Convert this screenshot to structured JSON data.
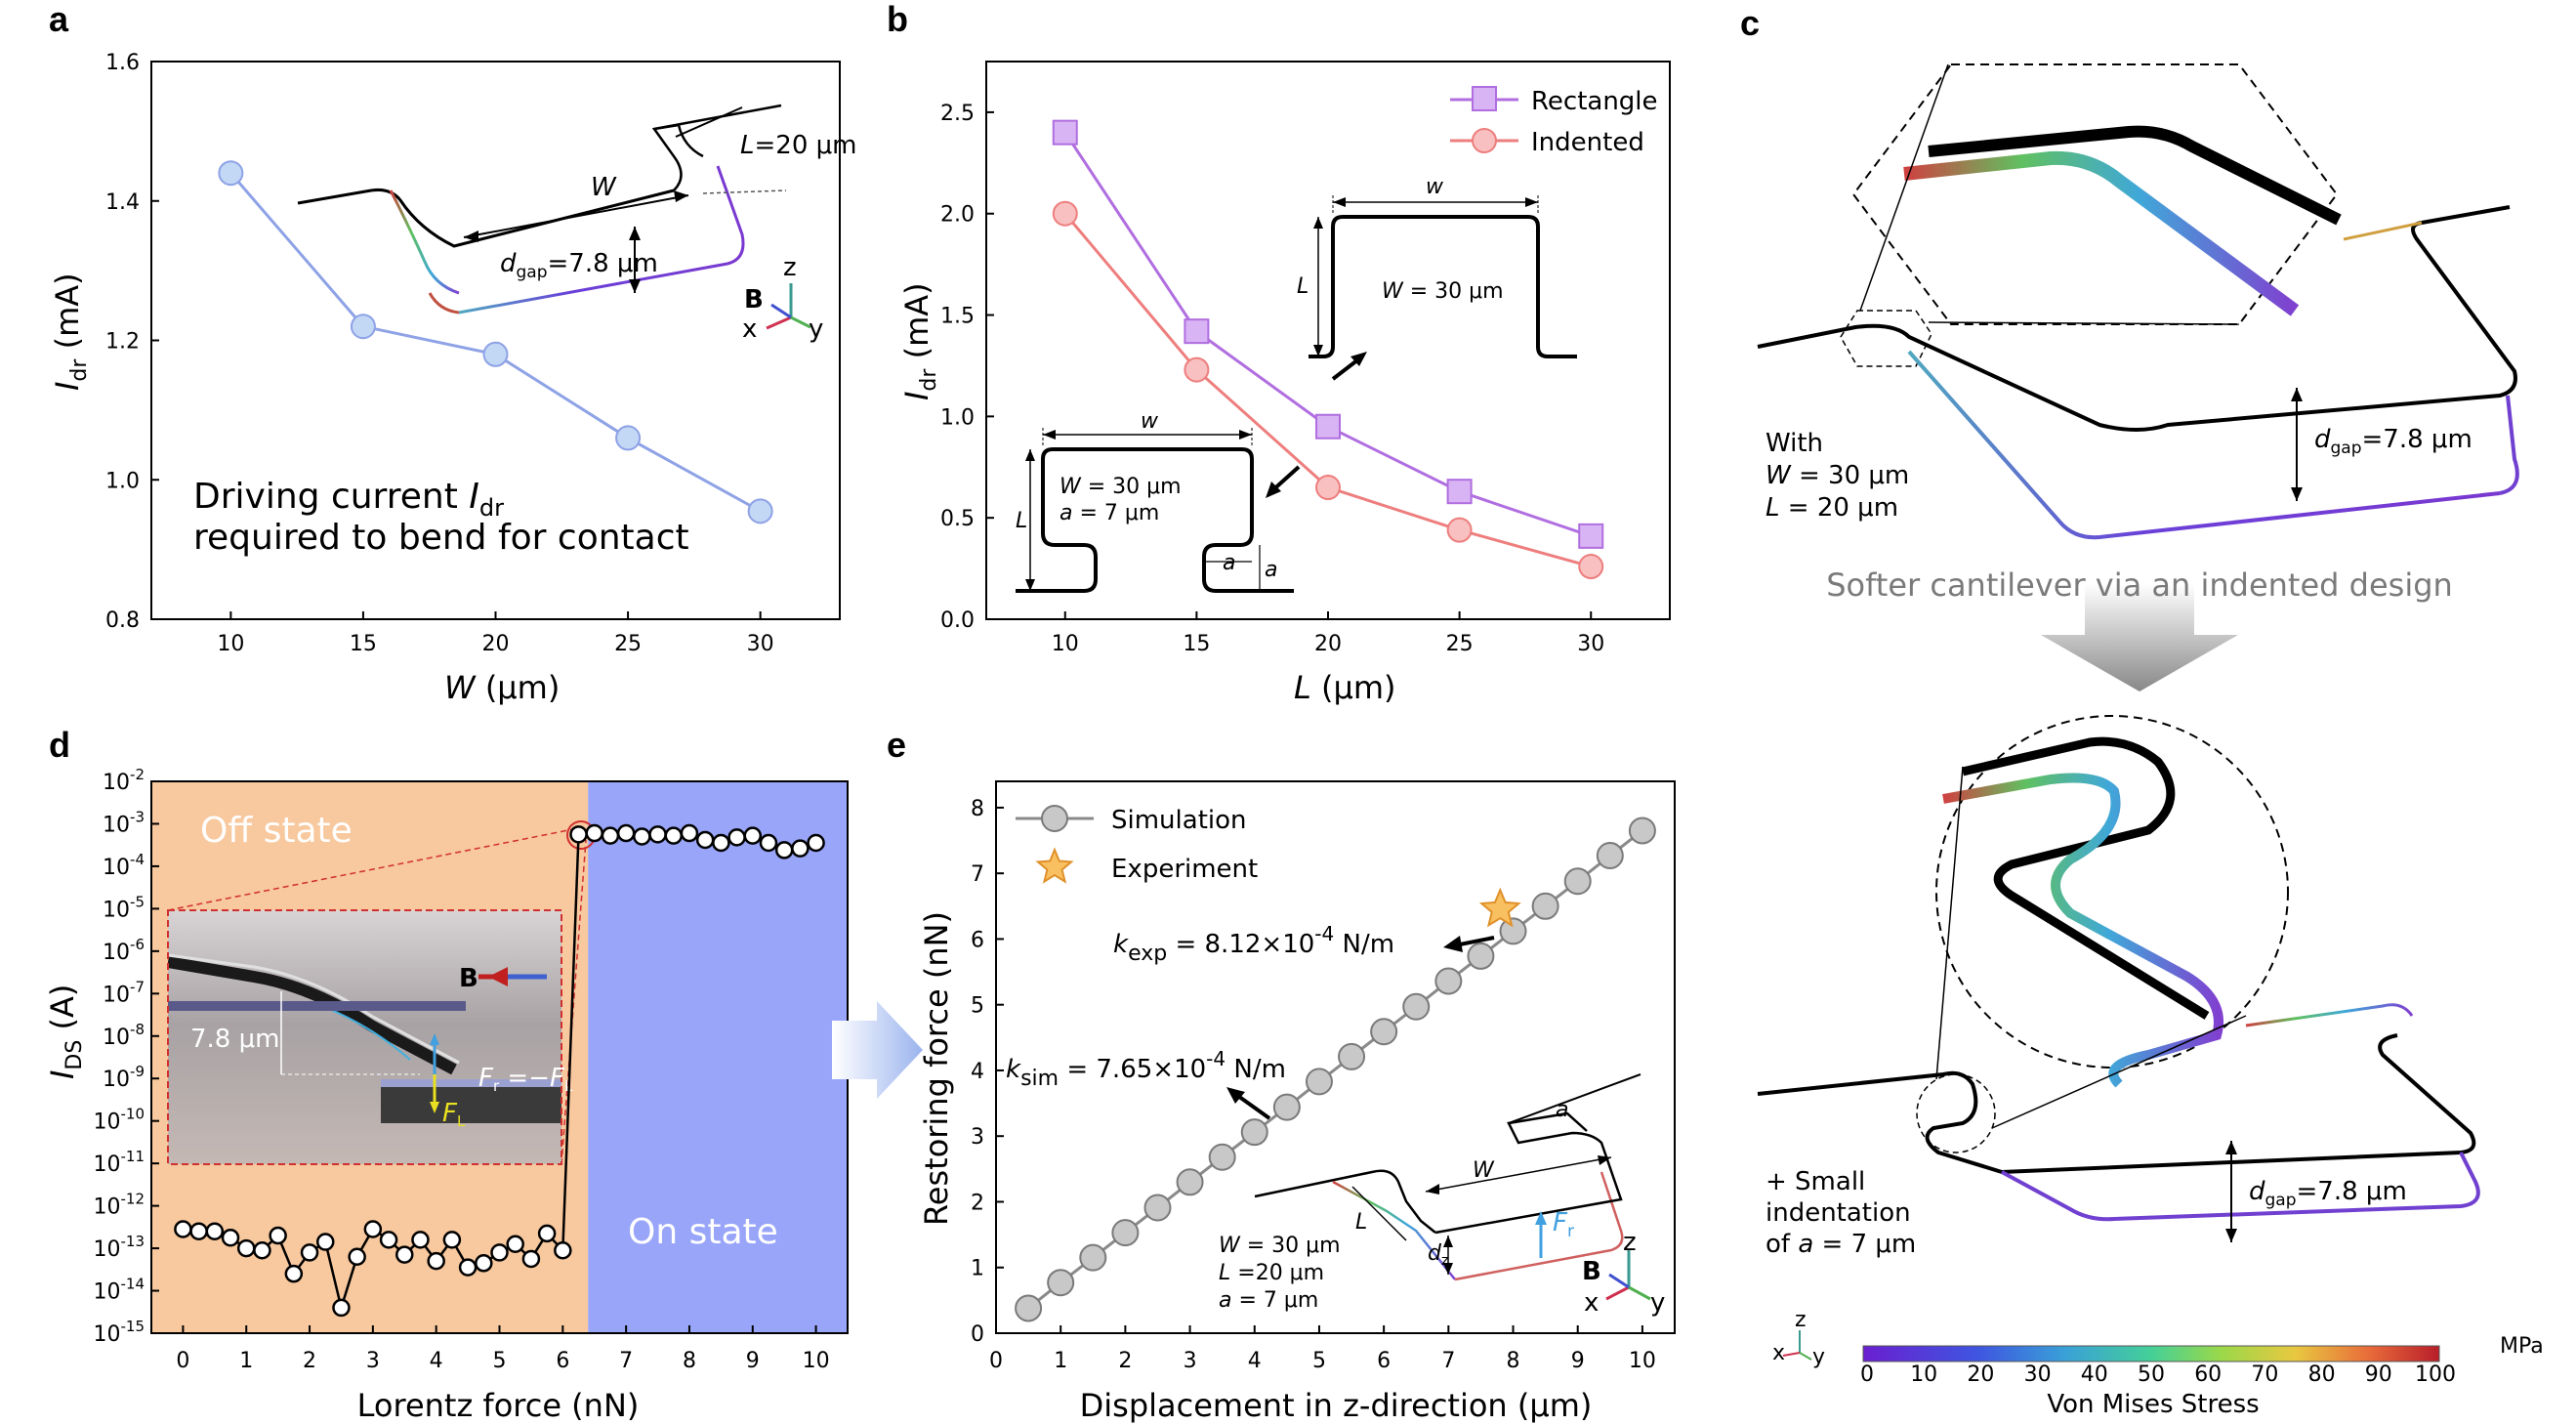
{
  "panels": {
    "a": "a",
    "b": "b",
    "c": "c",
    "d": "d",
    "e": "e"
  },
  "a": {
    "ylabel_main": "I",
    "ylabel_sub": "dr",
    "ylabel_unit": " (mA)",
    "xlabel_main": "W",
    "xlabel_unit": " (μm)",
    "note1_main": "Driving current ",
    "note1_var": "I",
    "note1_sub": "dr",
    "note2": "required to bend for contact",
    "inset_L": "=20 μm",
    "inset_Lvar": "L",
    "inset_W": "W",
    "inset_dgap_var": "d",
    "inset_dgap_sub": "gap",
    "inset_dgap_val": "=7.8 μm",
    "axes_z": "z",
    "axes_x": "x",
    "axes_y": "y",
    "axes_B": "B"
  },
  "b": {
    "ylabel_main": "I",
    "ylabel_sub": "dr",
    "ylabel_unit": " (mA)",
    "xlabel_main": "L",
    "xlabel_unit": " (μm)",
    "legend1": "Rectangle",
    "legend2": "Indented",
    "rect_w": "w",
    "rect_L": "L",
    "rect_W": "W",
    "rect_Wval": " = 30 μm",
    "ind_w": "w",
    "ind_L": "L",
    "ind_W": "W",
    "ind_Wval": " = 30 μm",
    "ind_a": "a",
    "ind_aval": " = 7 μm",
    "ind_a_small": "a"
  },
  "c": {
    "with": "With",
    "with_W": "W",
    "with_Wval": " = 30 μm",
    "with_L": "L",
    "with_Lval": " = 20 μm",
    "dgap_var": "d",
    "dgap_sub": "gap",
    "dgap_val": "=7.8 μm",
    "arrow_text": "Softer cantilever via an indented design",
    "small1": "+ Small",
    "small2": "indentation",
    "small3_pre": "of  ",
    "small3_var": "a",
    "small3_val": " = 7 μm",
    "dgap2_var": "d",
    "dgap2_sub": "gap",
    "dgap2_val": "=7.8 μm",
    "cbar_title": "Von Mises Stress",
    "cbar_unit": "MPa",
    "cbar_ticks": [
      "0",
      "10",
      "20",
      "30",
      "40",
      "50",
      "60",
      "70",
      "80",
      "90",
      "100"
    ],
    "triad_z": "z",
    "triad_x": "x",
    "triad_y": "y"
  },
  "d": {
    "ylabel_main": "I",
    "ylabel_sub": "DS",
    "ylabel_unit": " (A)",
    "xlabel": "Lorentz force (nN)",
    "off_state": "Off state",
    "on_state": "On state",
    "inset_gap": "7.8 μm",
    "inset_B": "B",
    "inset_Fr": "F",
    "inset_Fr_sub": "r",
    "inset_Fr_eq": " =−",
    "inset_FL": "F",
    "inset_FL_sub": "L",
    "colors": {
      "off": "#f8c89e",
      "on": "#99a5f8"
    }
  },
  "e": {
    "ylabel": "Restoring force (nN)",
    "xlabel": "Displacement in z-direction (μm)",
    "legend1": "Simulation",
    "legend2": "Experiment",
    "kexp_var": "k",
    "kexp_sub": "exp",
    "kexp_val": " = 8.12×10",
    "kexp_exp": "-4",
    "kexp_unit": " N/m",
    "ksim_var": "k",
    "ksim_sub": "sim",
    "ksim_val": " = 7.65×10",
    "ksim_exp": "-4",
    "ksim_unit": " N/m",
    "inset_W1": "W",
    "inset_W1val": " = 30 μm",
    "inset_L1": "L",
    "inset_L1val": " =20 μm",
    "inset_a1": "a",
    "inset_a1val": " = 7 μm",
    "inset_W": "W",
    "inset_L": "L",
    "inset_a": "a",
    "inset_dz": "d",
    "inset_dz_sub": "z",
    "inset_Fr": "F",
    "inset_Fr_sub": "r",
    "axes_B": "B",
    "axes_z": "z",
    "axes_x": "x",
    "axes_y": "y"
  },
  "chart_data": [
    {
      "panel": "a",
      "type": "line",
      "x": [
        10,
        15,
        20,
        25,
        30
      ],
      "y": [
        1.44,
        1.22,
        1.18,
        1.06,
        0.955
      ],
      "xlim": [
        7,
        33
      ],
      "ylim": [
        0.8,
        1.6
      ],
      "xticks": [
        "10",
        "15",
        "20",
        "25",
        "30"
      ],
      "yticks": [
        "0.8",
        "1.0",
        "1.2",
        "1.4",
        "1.6"
      ],
      "color": "#8ea2e6"
    },
    {
      "panel": "b",
      "type": "line",
      "x": [
        10,
        15,
        20,
        25,
        30
      ],
      "xlim": [
        7,
        33
      ],
      "ylim": [
        0,
        2.75
      ],
      "xticks": [
        "10",
        "15",
        "20",
        "25",
        "30"
      ],
      "yticks": [
        "0.0",
        "0.5",
        "1.0",
        "1.5",
        "2.0",
        "2.5"
      ],
      "series": [
        {
          "name": "Rectangle",
          "values": [
            2.4,
            1.42,
            0.95,
            0.63,
            0.41
          ],
          "color": "#b06ee0",
          "marker": "square"
        },
        {
          "name": "Indented",
          "values": [
            2.0,
            1.23,
            0.65,
            0.44,
            0.26
          ],
          "color": "#ee7e7e",
          "marker": "circle"
        }
      ]
    },
    {
      "panel": "d",
      "type": "line",
      "yscale": "log",
      "x": [
        0,
        0.25,
        0.5,
        0.75,
        1,
        1.25,
        1.5,
        1.75,
        2,
        2.25,
        2.5,
        2.75,
        3,
        3.25,
        3.5,
        3.75,
        4,
        4.25,
        4.5,
        4.75,
        5,
        5.25,
        5.5,
        5.75,
        6,
        6.25,
        6.5,
        6.75,
        7,
        7.25,
        7.5,
        7.75,
        8,
        8.25,
        8.5,
        8.75,
        9,
        9.25,
        9.5,
        9.75,
        10
      ],
      "y_exponent": [
        -12.55,
        -12.6,
        -12.6,
        -12.75,
        -13.0,
        -13.05,
        -12.7,
        -13.6,
        -13.1,
        -12.85,
        -14.4,
        -13.2,
        -12.55,
        -12.8,
        -13.15,
        -12.8,
        -13.3,
        -12.8,
        -13.45,
        -13.35,
        -13.1,
        -12.9,
        -13.25,
        -12.65,
        -13.05,
        -3.25,
        -3.22,
        -3.28,
        -3.22,
        -3.3,
        -3.25,
        -3.28,
        -3.22,
        -3.38,
        -3.45,
        -3.32,
        -3.28,
        -3.45,
        -3.62,
        -3.58,
        -3.45
      ],
      "xlim": [
        -0.5,
        10.5
      ],
      "ylim_exponent": [
        -15,
        -2
      ],
      "xticks": [
        "0",
        "1",
        "2",
        "3",
        "4",
        "5",
        "6",
        "7",
        "8",
        "9",
        "10"
      ],
      "ytick_exponents": [
        "-2",
        "-3",
        "-4",
        "-5",
        "-6",
        "-7",
        "-8",
        "-9",
        "-10",
        "-11",
        "-12",
        "-13",
        "-14",
        "-15"
      ],
      "switch_x": 6.4
    },
    {
      "panel": "e",
      "type": "scatter",
      "xlim": [
        0,
        10.5
      ],
      "ylim": [
        0,
        8.4
      ],
      "xticks": [
        "0",
        "1",
        "2",
        "3",
        "4",
        "5",
        "6",
        "7",
        "8",
        "9",
        "10"
      ],
      "yticks": [
        "0",
        "1",
        "2",
        "3",
        "4",
        "5",
        "6",
        "7",
        "8"
      ],
      "series": [
        {
          "name": "Simulation",
          "x": [
            0.5,
            1,
            1.5,
            2,
            2.5,
            3,
            3.5,
            4,
            4.5,
            5,
            5.5,
            6,
            6.5,
            7,
            7.5,
            8,
            8.5,
            9,
            9.5,
            10
          ],
          "values": [
            0.38,
            0.77,
            1.15,
            1.53,
            1.91,
            2.3,
            2.68,
            3.06,
            3.44,
            3.83,
            4.21,
            4.59,
            4.97,
            5.36,
            5.74,
            6.12,
            6.5,
            6.88,
            7.27,
            7.65
          ]
        },
        {
          "name": "Experiment",
          "x": [
            7.8
          ],
          "values": [
            6.45
          ]
        }
      ]
    }
  ]
}
